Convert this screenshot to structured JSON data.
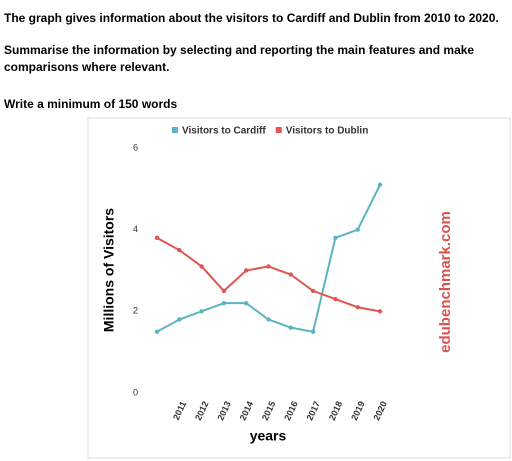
{
  "header": {
    "task": "The graph gives information about the visitors to Cardiff and Dublin from 2010 to 2020.",
    "instruction": "Summarise the information by selecting and reporting the main features and make comparisons where relevant.",
    "requirement": "Write a minimum of 150 words"
  },
  "chart_data": {
    "type": "line",
    "categories": [
      null,
      "2011",
      "2012",
      "2013",
      "2014",
      "2015",
      "2016",
      "2017",
      "2018",
      "2019",
      "2020"
    ],
    "series": [
      {
        "name": "Visitors to Cardiff",
        "color": "#5ab4c4",
        "values": [
          1.5,
          1.8,
          2.0,
          2.2,
          2.2,
          1.8,
          1.6,
          1.5,
          3.8,
          4.0,
          5.1
        ]
      },
      {
        "name": "Visitors to Dublin",
        "color": "#e05652",
        "values": [
          3.8,
          3.5,
          3.1,
          2.5,
          3.0,
          3.1,
          2.9,
          2.5,
          2.3,
          2.1,
          2.0
        ]
      }
    ],
    "ylim": [
      0,
      6
    ],
    "yticks": [
      0,
      2,
      4,
      6
    ],
    "grid": false,
    "legend": "top",
    "xlabel": "years",
    "ylabel": "Millions of Visitors",
    "watermark": "edubenchmark.com"
  }
}
